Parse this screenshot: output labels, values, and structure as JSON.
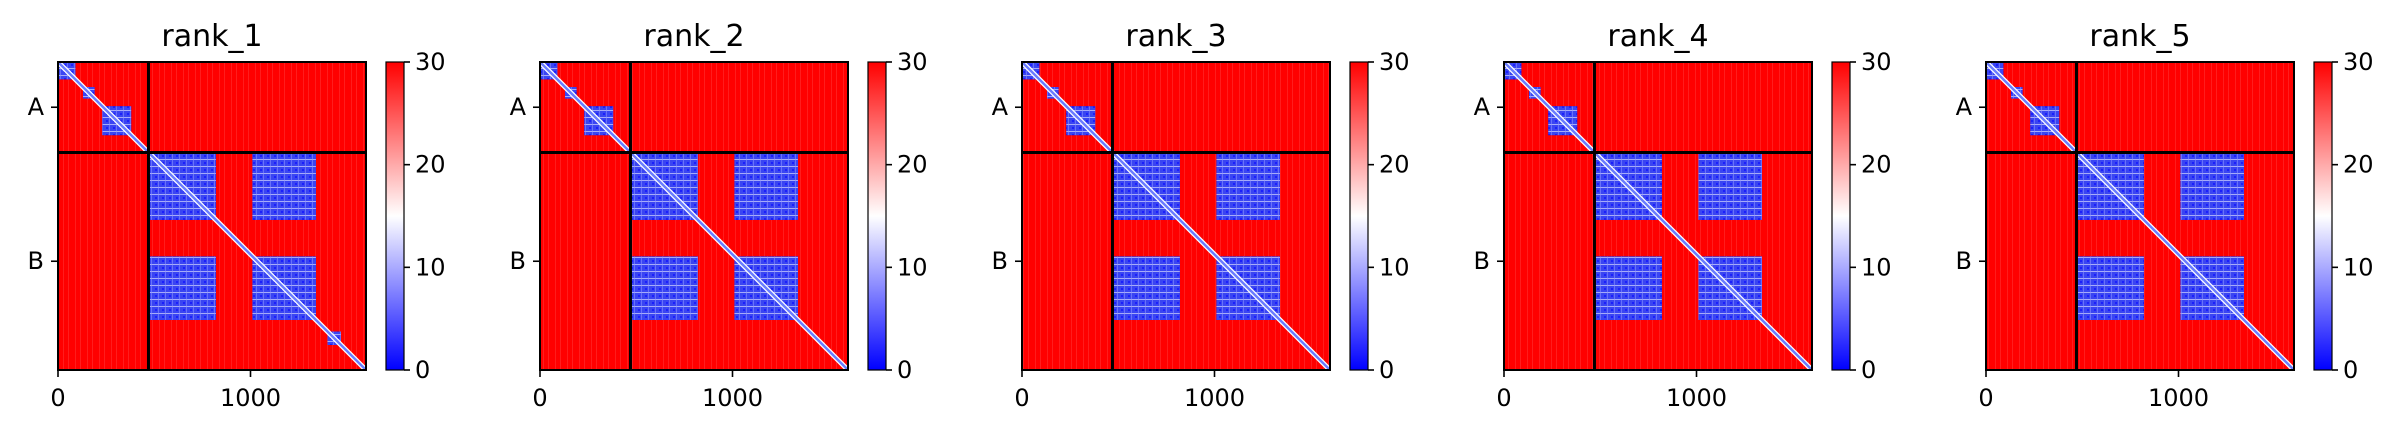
{
  "chart_data": [
    {
      "type": "heatmap",
      "title": "rank_1",
      "chains": [
        "A",
        "B"
      ],
      "chain_ranges": {
        "A": [
          0,
          470
        ],
        "B": [
          470,
          1600
        ]
      },
      "xticks": [
        0,
        1000
      ],
      "xlim": [
        0,
        1600
      ],
      "colorbar": {
        "min": 0,
        "max": 30,
        "ticks": [
          0,
          10,
          20,
          30
        ],
        "colormap": "bwr"
      },
      "chain_boundary": 470,
      "low_error_blocks": [
        {
          "x": [
            0,
            90
          ],
          "y": [
            0,
            90
          ]
        },
        {
          "x": [
            130,
            190
          ],
          "y": [
            130,
            190
          ]
        },
        {
          "x": [
            230,
            380
          ],
          "y": [
            230,
            380
          ]
        },
        {
          "x": [
            470,
            820
          ],
          "y": [
            470,
            820
          ]
        },
        {
          "x": [
            1010,
            1340
          ],
          "y": [
            470,
            820
          ]
        },
        {
          "x": [
            470,
            820
          ],
          "y": [
            1010,
            1340
          ]
        },
        {
          "x": [
            1010,
            1340
          ],
          "y": [
            1010,
            1340
          ]
        },
        {
          "x": [
            1400,
            1470
          ],
          "y": [
            1400,
            1470
          ]
        }
      ]
    },
    {
      "type": "heatmap",
      "title": "rank_2",
      "chains": [
        "A",
        "B"
      ],
      "chain_ranges": {
        "A": [
          0,
          470
        ],
        "B": [
          470,
          1600
        ]
      },
      "xticks": [
        0,
        1000
      ],
      "xlim": [
        0,
        1600
      ],
      "colorbar": {
        "min": 0,
        "max": 30,
        "ticks": [
          0,
          10,
          20,
          30
        ],
        "colormap": "bwr"
      },
      "chain_boundary": 470,
      "low_error_blocks": [
        {
          "x": [
            0,
            90
          ],
          "y": [
            0,
            90
          ]
        },
        {
          "x": [
            130,
            190
          ],
          "y": [
            130,
            190
          ]
        },
        {
          "x": [
            230,
            380
          ],
          "y": [
            230,
            380
          ]
        },
        {
          "x": [
            470,
            820
          ],
          "y": [
            470,
            820
          ]
        },
        {
          "x": [
            1010,
            1340
          ],
          "y": [
            470,
            820
          ]
        },
        {
          "x": [
            470,
            820
          ],
          "y": [
            1010,
            1340
          ]
        },
        {
          "x": [
            1010,
            1340
          ],
          "y": [
            1010,
            1340
          ]
        }
      ]
    },
    {
      "type": "heatmap",
      "title": "rank_3",
      "chains": [
        "A",
        "B"
      ],
      "chain_ranges": {
        "A": [
          0,
          470
        ],
        "B": [
          470,
          1600
        ]
      },
      "xticks": [
        0,
        1000
      ],
      "xlim": [
        0,
        1600
      ],
      "colorbar": {
        "min": 0,
        "max": 30,
        "ticks": [
          0,
          10,
          20,
          30
        ],
        "colormap": "bwr"
      },
      "chain_boundary": 470,
      "low_error_blocks": [
        {
          "x": [
            0,
            90
          ],
          "y": [
            0,
            90
          ]
        },
        {
          "x": [
            130,
            190
          ],
          "y": [
            130,
            190
          ]
        },
        {
          "x": [
            230,
            380
          ],
          "y": [
            230,
            380
          ]
        },
        {
          "x": [
            470,
            820
          ],
          "y": [
            470,
            820
          ]
        },
        {
          "x": [
            1010,
            1340
          ],
          "y": [
            470,
            820
          ]
        },
        {
          "x": [
            470,
            820
          ],
          "y": [
            1010,
            1340
          ]
        },
        {
          "x": [
            1010,
            1340
          ],
          "y": [
            1010,
            1340
          ]
        }
      ]
    },
    {
      "type": "heatmap",
      "title": "rank_4",
      "chains": [
        "A",
        "B"
      ],
      "chain_ranges": {
        "A": [
          0,
          470
        ],
        "B": [
          470,
          1600
        ]
      },
      "xticks": [
        0,
        1000
      ],
      "xlim": [
        0,
        1600
      ],
      "colorbar": {
        "min": 0,
        "max": 30,
        "ticks": [
          0,
          10,
          20,
          30
        ],
        "colormap": "bwr"
      },
      "chain_boundary": 470,
      "low_error_blocks": [
        {
          "x": [
            0,
            90
          ],
          "y": [
            0,
            90
          ]
        },
        {
          "x": [
            130,
            190
          ],
          "y": [
            130,
            190
          ]
        },
        {
          "x": [
            230,
            380
          ],
          "y": [
            230,
            380
          ]
        },
        {
          "x": [
            470,
            820
          ],
          "y": [
            470,
            820
          ]
        },
        {
          "x": [
            1010,
            1340
          ],
          "y": [
            470,
            820
          ]
        },
        {
          "x": [
            470,
            820
          ],
          "y": [
            1010,
            1340
          ]
        },
        {
          "x": [
            1010,
            1340
          ],
          "y": [
            1010,
            1340
          ]
        }
      ]
    },
    {
      "type": "heatmap",
      "title": "rank_5",
      "chains": [
        "A",
        "B"
      ],
      "chain_ranges": {
        "A": [
          0,
          470
        ],
        "B": [
          470,
          1600
        ]
      },
      "xticks": [
        0,
        1000
      ],
      "xlim": [
        0,
        1600
      ],
      "colorbar": {
        "min": 0,
        "max": 30,
        "ticks": [
          0,
          10,
          20,
          30
        ],
        "colormap": "bwr"
      },
      "chain_boundary": 470,
      "low_error_blocks": [
        {
          "x": [
            0,
            90
          ],
          "y": [
            0,
            90
          ]
        },
        {
          "x": [
            130,
            190
          ],
          "y": [
            130,
            190
          ]
        },
        {
          "x": [
            230,
            380
          ],
          "y": [
            230,
            380
          ]
        },
        {
          "x": [
            470,
            820
          ],
          "y": [
            470,
            820
          ]
        },
        {
          "x": [
            1010,
            1340
          ],
          "y": [
            470,
            820
          ]
        },
        {
          "x": [
            470,
            820
          ],
          "y": [
            1010,
            1340
          ]
        },
        {
          "x": [
            1010,
            1340
          ],
          "y": [
            1010,
            1340
          ]
        }
      ]
    }
  ],
  "colors": {
    "high_error": "#ff0000",
    "mid": "#ffffff",
    "low_error": "#0000ff",
    "diagonal": "#6a7cff",
    "boundary_line": "#000000"
  }
}
